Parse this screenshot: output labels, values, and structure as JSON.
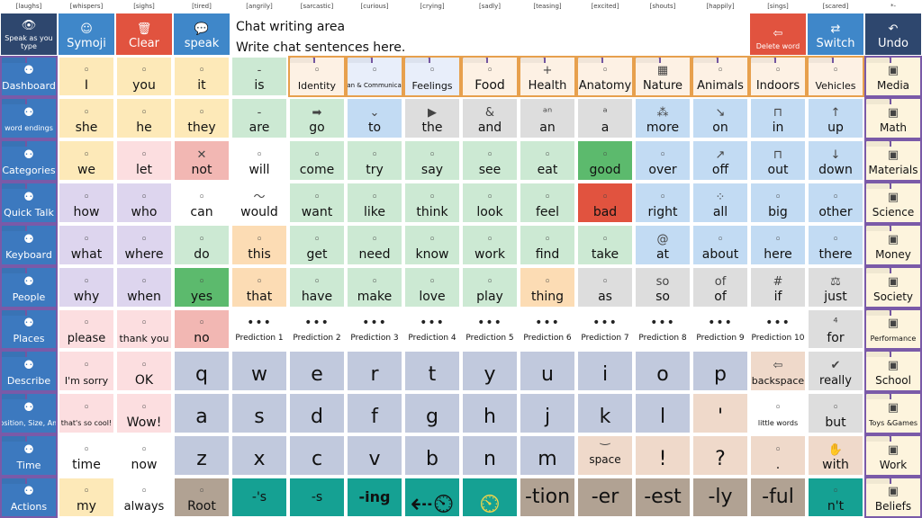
{
  "tones": [
    "[laughs]",
    "[whispers]",
    "[sighs]",
    "[tired]",
    "[angrily]",
    "[sarcastic]",
    "[curious]",
    "[crying]",
    "[sadly]",
    "[teasing]",
    "[excited]",
    "[shouts]",
    "[happily]",
    "[sings]",
    "[scared]",
    "*-"
  ],
  "topbar": {
    "speak_type": "Speak as you type",
    "symoji": "Symoji",
    "clear": "Clear",
    "speak": "speak",
    "chat_line1": "Chat writing area",
    "chat_line2": "Write chat sentences here.",
    "delete_word": "Delete word",
    "switch": "Switch",
    "undo": "Undo"
  },
  "left_nav": [
    "Dashboard",
    "word endings",
    "Categories",
    "Quick Talk",
    "Keyboard",
    "People",
    "Places",
    "Describe",
    "Position, Size, Amt",
    "Time",
    "Actions"
  ],
  "right_col": [
    "Media",
    "Math",
    "Materials",
    "Science",
    "Money",
    "Society",
    "Performance",
    "School",
    "Toys &Games",
    "Work",
    "Beliefs"
  ],
  "rows": [
    [
      "I",
      "you",
      "it",
      "is",
      "Identity",
      "Plan & Communicate",
      "Feelings",
      "Food",
      "Health",
      "Anatomy",
      "Nature",
      "Animals",
      "Indoors",
      "Vehicles"
    ],
    [
      "she",
      "he",
      "they",
      "are",
      "go",
      "to",
      "the",
      "and",
      "an",
      "a",
      "more",
      "on",
      "in",
      "up"
    ],
    [
      "we",
      "let",
      "not",
      "will",
      "come",
      "try",
      "say",
      "see",
      "eat",
      "good",
      "over",
      "off",
      "out",
      "down"
    ],
    [
      "how",
      "who",
      "can",
      "would",
      "want",
      "like",
      "think",
      "look",
      "feel",
      "bad",
      "right",
      "all",
      "big",
      "other"
    ],
    [
      "what",
      "where",
      "do",
      "this",
      "get",
      "need",
      "know",
      "work",
      "find",
      "take",
      "at",
      "about",
      "here",
      "there"
    ],
    [
      "why",
      "when",
      "yes",
      "that",
      "have",
      "make",
      "love",
      "play",
      "thing",
      "as",
      "so",
      "of",
      "if",
      "just"
    ],
    [
      "please",
      "thank you",
      "no",
      "Prediction 1",
      "Prediction 2",
      "Prediction 3",
      "Prediction 4",
      "Prediction 5",
      "Prediction 6",
      "Prediction 7",
      "Prediction 8",
      "Prediction 9",
      "Prediction 10",
      "for"
    ],
    [
      "I'm sorry",
      "OK",
      "q",
      "w",
      "e",
      "r",
      "t",
      "y",
      "u",
      "i",
      "o",
      "p",
      "backspace",
      "really"
    ],
    [
      "that's so cool!",
      "Wow!",
      "a",
      "s",
      "d",
      "f",
      "g",
      "h",
      "j",
      "k",
      "l",
      "'",
      "little words",
      "but"
    ],
    [
      "time",
      "now",
      "z",
      "x",
      "c",
      "v",
      "b",
      "n",
      "m",
      "space",
      "!",
      "?",
      ".",
      "with"
    ],
    [
      "my",
      "always",
      "Root",
      "-'s",
      "-s",
      "-ing",
      "",
      "",
      "-tion",
      "-er",
      "-est",
      "-ly",
      "-ful",
      "n't"
    ]
  ],
  "icons": {
    "is": "-",
    "are": "-",
    "go": "➡",
    "to": "⌄",
    "the": "▶",
    "and": "&",
    "an": "ᵃⁿ",
    "a": "ᵃ",
    "on": "↘",
    "in": "⊓",
    "up": "↑",
    "off": "↗",
    "out": "⊓",
    "down": "↓",
    "at": "@",
    "so": "so",
    "of": "of",
    "if": "#",
    "for": "⁴",
    "not": "✕",
    "would": "〜",
    "Health": "+",
    "with": "✋",
    "really": "✔",
    "just": "⚖",
    "all": "⁘",
    "more": "⁂",
    "Nature": "▦",
    "undo": "↶",
    "delete": "⇦",
    "clear": "🗑",
    "speak": "💬",
    "switch": "⇄",
    "backspace": "⇦"
  },
  "colors": {
    "accent_blue": "#3f87c9",
    "red": "#e1533f",
    "navy": "#2e476e",
    "teal": "#15a193"
  }
}
